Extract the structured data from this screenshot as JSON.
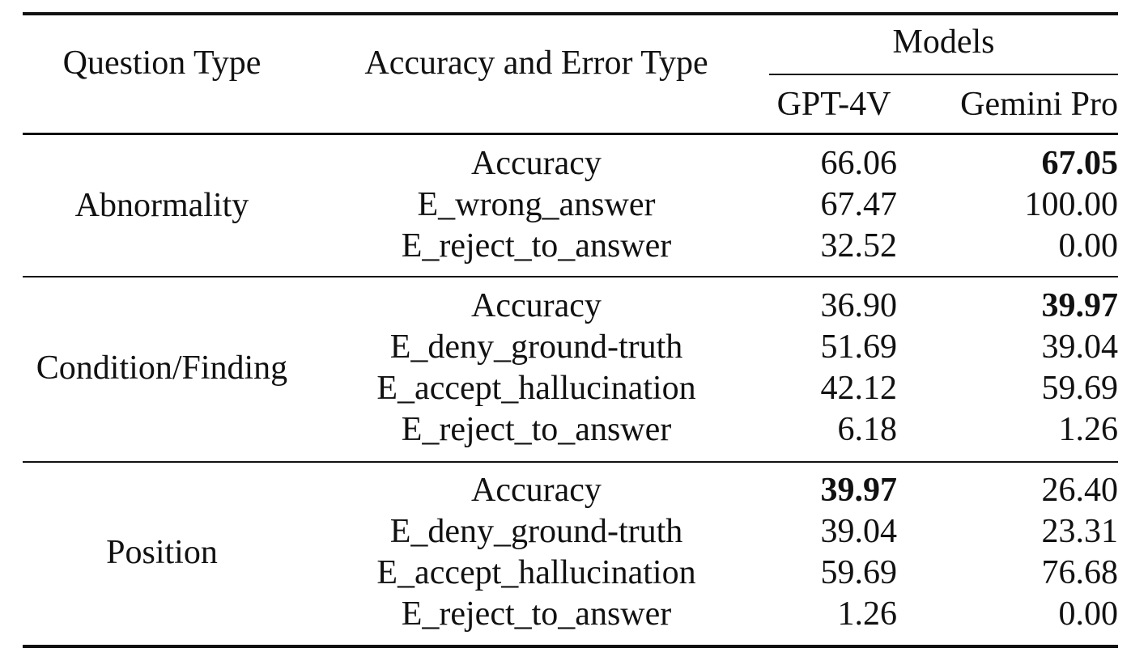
{
  "header": {
    "question_type": "Question Type",
    "accuracy_error_type": "Accuracy and Error Type",
    "models": "Models",
    "model_names": [
      "GPT-4V",
      "Gemini Pro"
    ]
  },
  "sections": [
    {
      "question_type": "Abnormality",
      "rows": [
        {
          "metric": "Accuracy",
          "gpt4v": "66.06",
          "gemini": "67.05",
          "bold": "gemini"
        },
        {
          "metric": "E_wrong_answer",
          "gpt4v": "67.47",
          "gemini": "100.00",
          "bold": ""
        },
        {
          "metric": "E_reject_to_answer",
          "gpt4v": "32.52",
          "gemini": "0.00",
          "bold": ""
        }
      ]
    },
    {
      "question_type": "Condition/Finding",
      "rows": [
        {
          "metric": "Accuracy",
          "gpt4v": "36.90",
          "gemini": "39.97",
          "bold": "gemini"
        },
        {
          "metric": "E_deny_ground-truth",
          "gpt4v": "51.69",
          "gemini": "39.04",
          "bold": ""
        },
        {
          "metric": "E_accept_hallucination",
          "gpt4v": "42.12",
          "gemini": "59.69",
          "bold": ""
        },
        {
          "metric": "E_reject_to_answer",
          "gpt4v": "6.18",
          "gemini": "1.26",
          "bold": ""
        }
      ]
    },
    {
      "question_type": "Position",
      "rows": [
        {
          "metric": "Accuracy",
          "gpt4v": "39.97",
          "gemini": "26.40",
          "bold": "gpt4v"
        },
        {
          "metric": "E_deny_ground-truth",
          "gpt4v": "39.04",
          "gemini": "23.31",
          "bold": ""
        },
        {
          "metric": "E_accept_hallucination",
          "gpt4v": "59.69",
          "gemini": "76.68",
          "bold": ""
        },
        {
          "metric": "E_reject_to_answer",
          "gpt4v": "1.26",
          "gemini": "0.00",
          "bold": ""
        }
      ]
    }
  ]
}
